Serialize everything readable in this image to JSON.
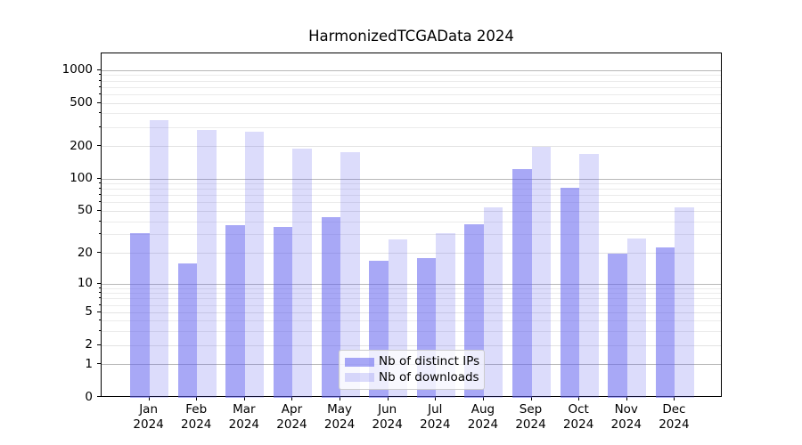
{
  "chart_data": {
    "type": "bar",
    "title": "HarmonizedTCGAData 2024",
    "categories": [
      "Jan 2024",
      "Feb 2024",
      "Mar 2024",
      "Apr 2024",
      "May 2024",
      "Jun 2024",
      "Jul 2024",
      "Aug 2024",
      "Sep 2024",
      "Oct 2024",
      "Nov 2024",
      "Dec 2024"
    ],
    "series": [
      {
        "name": "Nb of distinct IPs",
        "color": "#6060ee",
        "alpha": 0.55,
        "values": [
          31,
          16,
          37,
          36,
          44,
          17,
          18,
          38,
          123,
          83,
          20,
          23
        ]
      },
      {
        "name": "Nb of downloads",
        "color": "#6060ee",
        "alpha": 0.22,
        "values": [
          350,
          285,
          272,
          192,
          177,
          27,
          31,
          54,
          198,
          172,
          28,
          54
        ]
      }
    ],
    "xlabel": "",
    "ylabel": "",
    "yscale": "log1p",
    "ylim": [
      0,
      1430
    ],
    "yticks": [
      0,
      1,
      2,
      5,
      10,
      20,
      50,
      100,
      200,
      500,
      1000
    ],
    "grid": true,
    "legend_position": "lower center"
  },
  "colors": {
    "background": "#ffffff",
    "spine": "#000000",
    "text": "#000000",
    "grid_major": "#b8b8b8",
    "grid_mid": "#e3e3e3",
    "grid_minor": "#ebebeb",
    "legend_border": "#cccccc"
  }
}
